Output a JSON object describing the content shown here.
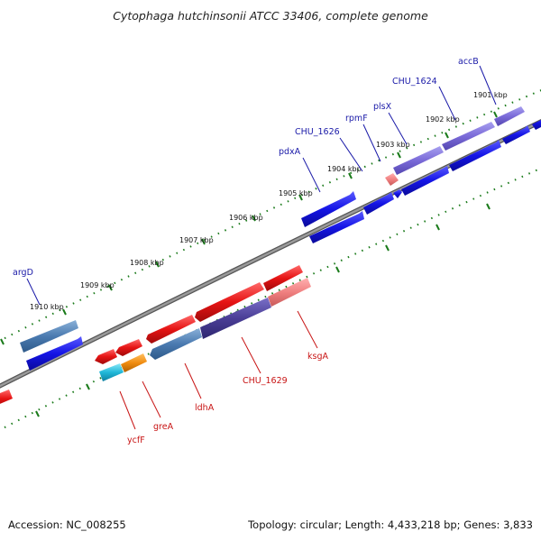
{
  "title": "Cytophaga hutchinsonii ATCC 33406, complete genome",
  "footer": {
    "accession": "Accession: NC_008255",
    "summary": "Topology: circular; Length: 4,433,218 bp; Genes: 3,833"
  },
  "ticks": [
    "1901 kbp",
    "1902 kbp",
    "1903 kbp",
    "1904 kbp",
    "1905 kbp",
    "1906 kbp",
    "1907 kbp",
    "1908 kbp",
    "1909 kbp",
    "1910 kbp"
  ],
  "colors": {
    "forward_cds": "#1414e6",
    "reverse_cds": "#e61414",
    "backbone": "#8a8a8a",
    "tick_dots": "#1a7a1a",
    "forward_label": "#1a1aa8",
    "reverse_label": "#c81414"
  },
  "genes_forward": [
    "accB",
    "CHU_1624",
    "plsX",
    "rpmF",
    "CHU_1626",
    "pdxA",
    "argD"
  ],
  "genes_reverse": [
    "ksgA",
    "CHU_1629",
    "ldhA",
    "greA",
    "ycfF"
  ]
}
